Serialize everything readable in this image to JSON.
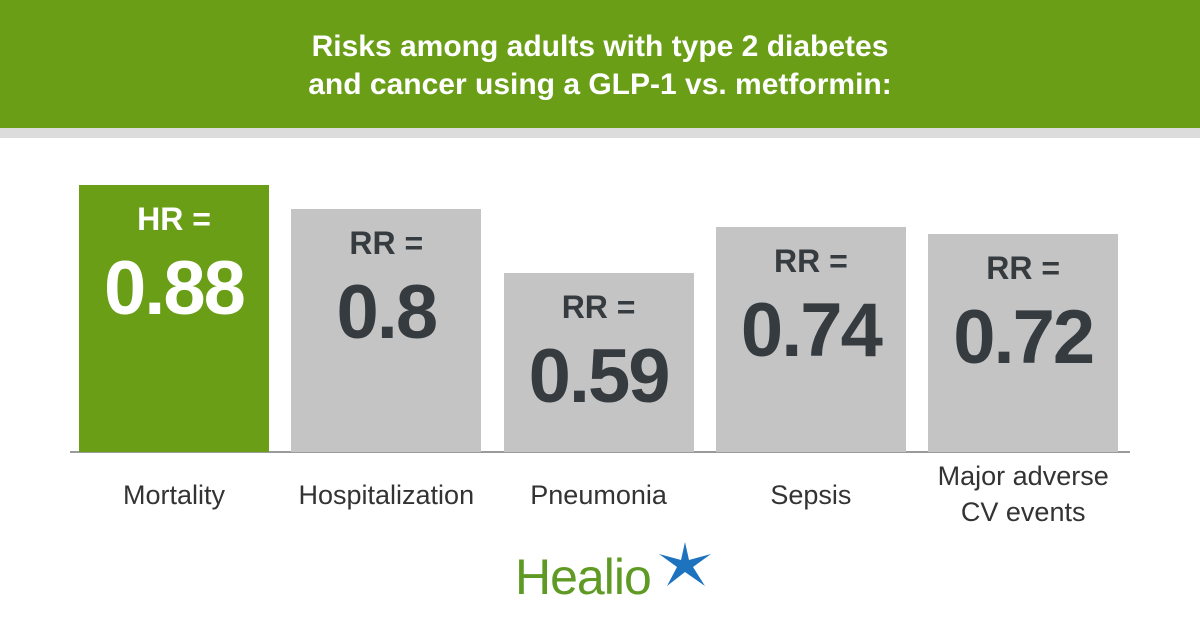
{
  "chart_data": {
    "type": "bar",
    "title": "Risks among adults with type 2 diabetes and cancer using a GLP-1 vs. metformin:",
    "categories": [
      "Mortality",
      "Hospitalization",
      "Pneumonia",
      "Sepsis",
      "Major adverse CV events"
    ],
    "values": [
      0.88,
      0.8,
      0.59,
      0.74,
      0.72
    ],
    "value_prefixes": [
      "HR =",
      "RR =",
      "RR =",
      "RR =",
      "RR ="
    ],
    "colors": [
      "#6a9e17",
      "#c4c4c4",
      "#c4c4c4",
      "#c4c4c4",
      "#c4c4c4"
    ],
    "value_label_colors": [
      "#ffffff",
      "#363b40",
      "#363b40",
      "#363b40",
      "#363b40"
    ]
  },
  "logo": "Healio"
}
